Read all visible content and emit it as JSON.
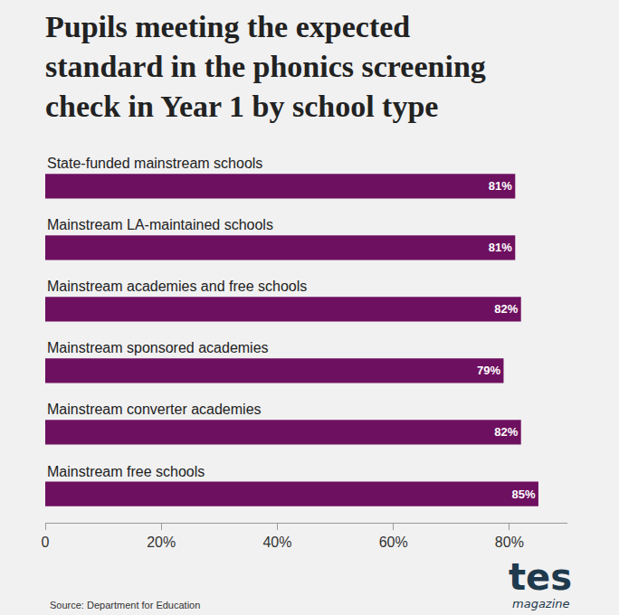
{
  "chart_data": {
    "type": "bar",
    "orientation": "horizontal",
    "title": "Pupils meeting the expected\nstandard in the phonics screening\ncheck in Year 1 by school type",
    "categories": [
      "State-funded mainstream schools",
      "Mainstream LA-maintained schools",
      "Mainstream academies and free schools",
      "Mainstream sponsored academies",
      "Mainstream converter academies",
      "Mainstream free schools"
    ],
    "values": [
      81,
      81,
      82,
      79,
      82,
      85
    ],
    "value_labels": [
      "81%",
      "81%",
      "82%",
      "79%",
      "82%",
      "85%"
    ],
    "data_labels": true,
    "color": "#6e1060",
    "xlim": [
      0,
      90
    ],
    "xticks": [
      0,
      {
        "value": 20,
        "label": "20%"
      },
      {
        "value": 40,
        "label": "40%"
      },
      {
        "value": 60,
        "label": "60%"
      },
      {
        "value": 80,
        "label": "80%"
      }
    ],
    "grid": false,
    "tick_labels": "x",
    "source": "Source: Department for Education",
    "branding": {
      "name": "tes",
      "subtitle": "magazine"
    }
  }
}
